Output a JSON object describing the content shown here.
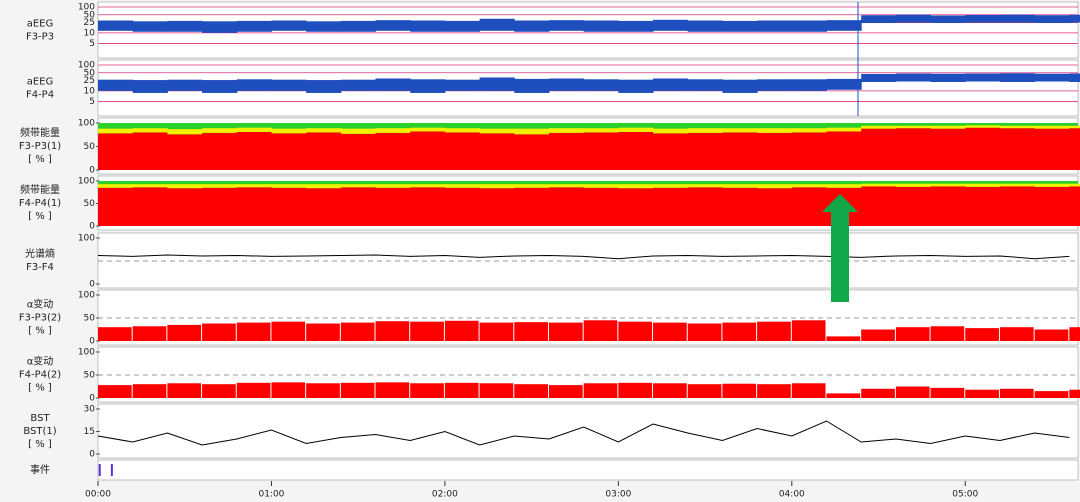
{
  "x": [
    0,
    0.2,
    0.4,
    0.6,
    0.8,
    1,
    1.2,
    1.4,
    1.6,
    1.8,
    2,
    2.2,
    2.4,
    2.6,
    2.8,
    3,
    3.2,
    3.4,
    3.6,
    3.8,
    4,
    4.2,
    4.4,
    4.6,
    4.8,
    5,
    5.2,
    5.4,
    5.6
  ],
  "time_axis": {
    "xlim": [
      0,
      5.65
    ],
    "xticks": [
      {
        "value": 0,
        "label": "00:00"
      },
      {
        "value": 1,
        "label": "01:00"
      },
      {
        "value": 2,
        "label": "02:00"
      },
      {
        "value": 3,
        "label": "03:00"
      },
      {
        "value": 4,
        "label": "04:00"
      },
      {
        "value": 5,
        "label": "05:00"
      }
    ]
  },
  "panels": [
    {
      "type": "aeeg",
      "label": [
        "aEEG",
        "F3-P3"
      ],
      "ylim": [
        0,
        100
      ],
      "yticks": [
        5,
        10,
        25,
        50,
        100
      ],
      "color": "#1f4fbf",
      "lower": [
        12,
        11,
        11,
        10,
        11,
        12,
        11,
        11,
        12,
        11,
        11,
        12,
        11,
        12,
        11,
        11,
        12,
        11,
        11,
        11,
        11,
        12,
        24,
        25,
        24,
        25,
        25,
        24,
        25
      ],
      "upper": [
        30,
        28,
        29,
        28,
        29,
        30,
        28,
        29,
        31,
        30,
        29,
        35,
        30,
        31,
        30,
        29,
        32,
        30,
        29,
        30,
        30,
        31,
        48,
        50,
        47,
        49,
        50,
        48,
        50
      ]
    },
    {
      "type": "aeeg",
      "label": [
        "aEEG",
        "F4-P4"
      ],
      "ylim": [
        0,
        100
      ],
      "yticks": [
        5,
        10,
        25,
        50,
        100
      ],
      "color": "#1f4fbf",
      "lower": [
        10,
        9,
        10,
        9,
        10,
        10,
        9,
        10,
        10,
        9,
        10,
        10,
        9,
        10,
        10,
        9,
        10,
        10,
        9,
        10,
        10,
        11,
        22,
        23,
        22,
        23,
        22,
        23,
        22
      ],
      "upper": [
        27,
        26,
        27,
        26,
        28,
        27,
        26,
        27,
        30,
        28,
        27,
        33,
        29,
        30,
        28,
        27,
        30,
        28,
        27,
        28,
        28,
        29,
        45,
        47,
        46,
        47,
        48,
        46,
        47
      ]
    },
    {
      "type": "stacked",
      "label": [
        "频带能量",
        "F3-P3(1)",
        "[ % ]"
      ],
      "ylim": [
        0,
        100
      ],
      "yticks": [
        0,
        50,
        100
      ],
      "series": [
        {
          "color": "#ff0000",
          "values": [
            78,
            80,
            76,
            79,
            81,
            78,
            80,
            77,
            79,
            82,
            80,
            78,
            76,
            79,
            80,
            81,
            78,
            79,
            80,
            79,
            80,
            82,
            88,
            89,
            88,
            90,
            89,
            88,
            89
          ]
        },
        {
          "color": "#f0f000",
          "values": [
            10,
            9,
            11,
            10,
            9,
            10,
            9,
            11,
            10,
            8,
            9,
            10,
            12,
            10,
            9,
            9,
            10,
            10,
            9,
            10,
            9,
            8,
            6,
            5,
            6,
            5,
            5,
            6,
            5
          ]
        }
      ]
    },
    {
      "type": "stacked",
      "label": [
        "频带能量",
        "F4-P4(1)",
        "[ % ]"
      ],
      "ylim": [
        0,
        100
      ],
      "yticks": [
        0,
        50,
        100
      ],
      "series": [
        {
          "color": "#ff0000",
          "values": [
            85,
            86,
            84,
            85,
            86,
            85,
            84,
            86,
            85,
            86,
            85,
            84,
            85,
            86,
            85,
            84,
            85,
            86,
            85,
            84,
            86,
            85,
            88,
            87,
            88,
            87,
            88,
            87,
            88
          ]
        },
        {
          "color": "#f0f000",
          "values": [
            8,
            7,
            9,
            8,
            7,
            8,
            9,
            7,
            8,
            7,
            8,
            9,
            8,
            7,
            8,
            9,
            8,
            7,
            8,
            9,
            7,
            8,
            6,
            7,
            6,
            7,
            6,
            7,
            6
          ]
        }
      ]
    },
    {
      "type": "line",
      "label": [
        "光谱熵",
        "F3-F4"
      ],
      "ylim": [
        0,
        100
      ],
      "yticks": [
        0,
        100
      ],
      "reference": 50,
      "color": "#000000",
      "values": [
        62,
        60,
        63,
        61,
        62,
        60,
        61,
        62,
        63,
        60,
        62,
        58,
        61,
        62,
        60,
        55,
        61,
        62,
        60,
        61,
        62,
        60,
        58,
        61,
        62,
        60,
        61,
        55,
        60
      ]
    },
    {
      "type": "bar",
      "label": [
        "α变动",
        "F3-P3(2)",
        "[ % ]"
      ],
      "ylim": [
        0,
        100
      ],
      "yticks": [
        0,
        50,
        100
      ],
      "reference": 50,
      "color": "#ff0000",
      "values": [
        30,
        32,
        35,
        38,
        40,
        42,
        38,
        40,
        43,
        42,
        44,
        40,
        41,
        40,
        45,
        42,
        40,
        38,
        40,
        42,
        45,
        10,
        25,
        30,
        32,
        28,
        30,
        25,
        30
      ]
    },
    {
      "type": "bar",
      "label": [
        "α变动",
        "F4-P4(2)",
        "[ % ]"
      ],
      "ylim": [
        0,
        100
      ],
      "yticks": [
        0,
        50,
        100
      ],
      "reference": 50,
      "color": "#ff0000",
      "values": [
        28,
        30,
        32,
        30,
        33,
        34,
        32,
        33,
        34,
        32,
        33,
        32,
        30,
        28,
        32,
        33,
        32,
        30,
        31,
        30,
        32,
        10,
        20,
        25,
        22,
        18,
        20,
        15,
        18
      ]
    },
    {
      "type": "line",
      "label": [
        "BST",
        "BST(1)",
        "[ % ]"
      ],
      "ylim": [
        0,
        30
      ],
      "yticks": [
        0,
        15,
        30
      ],
      "color": "#000000",
      "values": [
        12,
        8,
        14,
        6,
        10,
        16,
        7,
        11,
        13,
        9,
        15,
        6,
        12,
        10,
        18,
        8,
        20,
        14,
        9,
        17,
        12,
        22,
        8,
        10,
        7,
        12,
        9,
        14,
        11
      ]
    },
    {
      "type": "events",
      "label": [
        "事件"
      ],
      "color": "#5a2fd6",
      "times": [
        0.01,
        0.08
      ]
    }
  ]
}
